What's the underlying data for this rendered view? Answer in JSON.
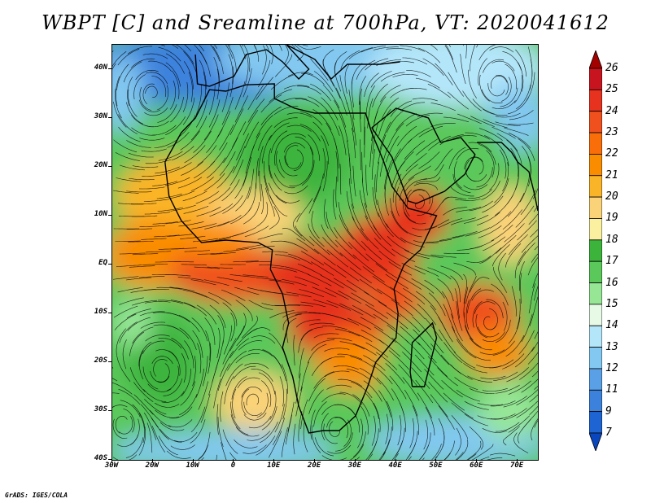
{
  "title": "WBPT [C] and Sreamline at 700hPa, VT: 2020041612",
  "footer": "GrADS: IGES/COLA",
  "lat_labels": [
    "40N",
    "30N",
    "20N",
    "10N",
    "EQ",
    "10S",
    "20S",
    "30S",
    "40S"
  ],
  "lon_labels": [
    "30W",
    "20W",
    "10W",
    "0",
    "10E",
    "20E",
    "30E",
    "40E",
    "50E",
    "60E",
    "70E"
  ],
  "colorbar": {
    "labels": [
      "26",
      "25",
      "24",
      "23",
      "22",
      "21",
      "20",
      "19",
      "18",
      "17",
      "16",
      "15",
      "14",
      "13",
      "12",
      "11",
      "9",
      "7"
    ],
    "colors": [
      "#a50000",
      "#c8141e",
      "#e6321e",
      "#f0501e",
      "#fa6e0a",
      "#fa8c00",
      "#fab428",
      "#fad278",
      "#faf0a0",
      "#3cb43c",
      "#5ac85a",
      "#96e696",
      "#e6fae6",
      "#b4e6fa",
      "#82c8f0",
      "#5aa0e6",
      "#3c82dc",
      "#1e64d2",
      "#0a46be"
    ]
  },
  "map": {
    "lat_range": [
      -40,
      45
    ],
    "lon_range": [
      -30,
      75
    ],
    "colors": {
      "cold": "#3c82dc",
      "cool": "#82c8f0",
      "mild": "#b4e6fa",
      "green_dark": "#3cb43c",
      "green": "#5ac85a",
      "green_light": "#96e696",
      "yellow": "#fad278",
      "orange_light": "#fab428",
      "orange": "#fa8c00",
      "orange_red": "#f0501e",
      "red": "#e6321e",
      "coast": "#000000"
    }
  }
}
